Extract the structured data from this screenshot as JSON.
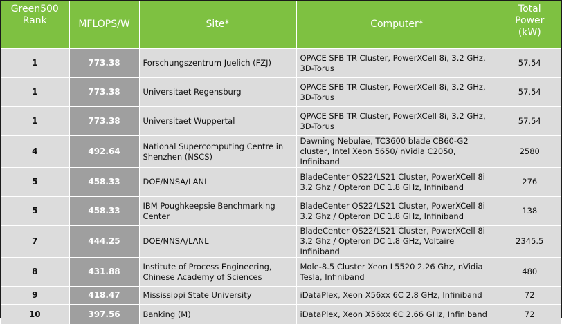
{
  "table": {
    "headers": {
      "rank": "Green500\nRank",
      "mflops": "MFLOPS/W",
      "site": "Site*",
      "computer": "Computer*",
      "power": "Total\nPower\n(kW)"
    },
    "rows": [
      {
        "rank": "1",
        "mflops": "773.38",
        "site": "Forschungszentrum Juelich (FZJ)",
        "computer": "QPACE SFB TR Cluster, PowerXCell 8i, 3.2 GHz, 3D-Torus",
        "power": "57.54"
      },
      {
        "rank": "1",
        "mflops": "773.38",
        "site": "Universitaet Regensburg",
        "computer": "QPACE SFB TR Cluster, PowerXCell 8i, 3.2 GHz, 3D-Torus",
        "power": "57.54"
      },
      {
        "rank": "1",
        "mflops": "773.38",
        "site": "Universitaet Wuppertal",
        "computer": "QPACE SFB TR Cluster, PowerXCell 8i, 3.2 GHz, 3D-Torus",
        "power": "57.54"
      },
      {
        "rank": "4",
        "mflops": "492.64",
        "site": "National Supercomputing Centre in Shenzhen (NSCS)",
        "computer": "Dawning Nebulae, TC3600 blade CB60-G2 cluster, Intel Xeon 5650/ nVidia C2050, Infiniband",
        "power": "2580"
      },
      {
        "rank": "5",
        "mflops": "458.33",
        "site": "DOE/NNSA/LANL",
        "computer": "BladeCenter QS22/LS21 Cluster, PowerXCell 8i 3.2 Ghz / Opteron DC 1.8 GHz, Infiniband",
        "power": "276"
      },
      {
        "rank": "5",
        "mflops": "458.33",
        "site": "IBM Poughkeepsie Benchmarking Center",
        "computer": "BladeCenter QS22/LS21 Cluster, PowerXCell 8i 3.2 Ghz / Opteron DC 1.8 GHz, Infiniband",
        "power": "138"
      },
      {
        "rank": "7",
        "mflops": "444.25",
        "site": "DOE/NNSA/LANL",
        "computer": "BladeCenter QS22/LS21 Cluster, PowerXCell 8i 3.2 Ghz / Opteron DC 1.8 GHz, Voltaire Infiniband",
        "power": "2345.5"
      },
      {
        "rank": "8",
        "mflops": "431.88",
        "site": "Institute of Process Engineering, Chinese Academy of Sciences",
        "computer": "Mole-8.5 Cluster Xeon L5520 2.26 Ghz, nVidia Tesla, Infiniband",
        "power": "480"
      },
      {
        "rank": "9",
        "mflops": "418.47",
        "site": "Mississippi State University",
        "computer": "iDataPlex, Xeon X56xx 6C 2.8 GHz, Infiniband",
        "power": "72"
      },
      {
        "rank": "10",
        "mflops": "397.56",
        "site": "Banking (M)",
        "computer": "iDataPlex, Xeon X56xx 6C 2.66 GHz, Infiniband",
        "power": "72"
      }
    ]
  },
  "colors": {
    "header_bg": "#7ec141",
    "header_text": "#ffffff",
    "row_bg": "#dcdcdc",
    "mflops_bg": "#9f9f9f"
  }
}
